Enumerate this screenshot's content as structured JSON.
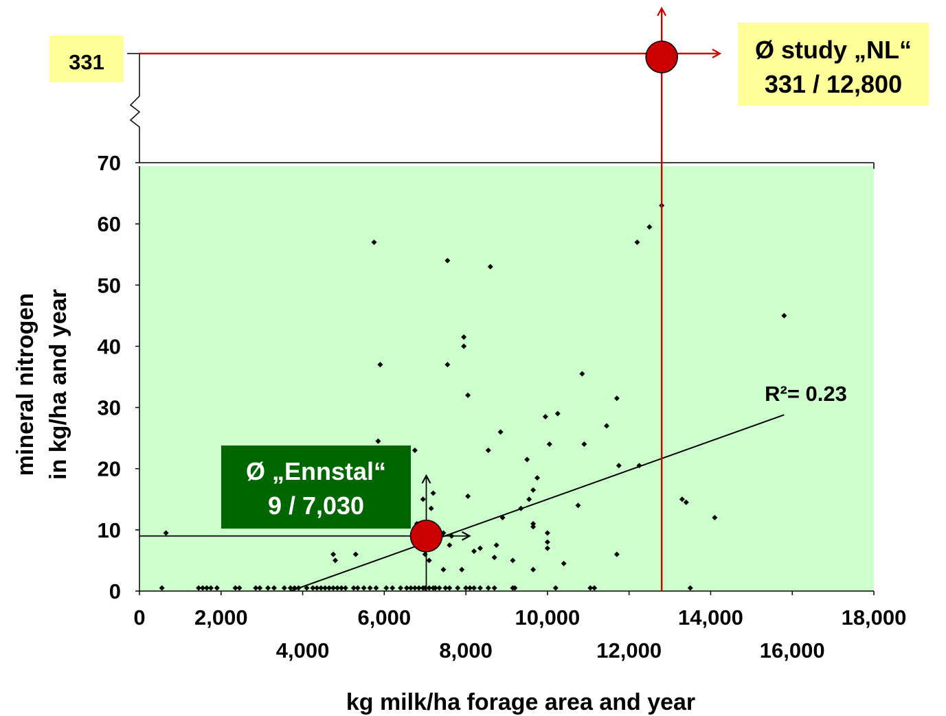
{
  "chart_data": {
    "type": "scatter",
    "xlabel": "kg milk/ha forage area and year",
    "ylabel_lines": [
      "mineral nitrogen",
      "in kg/ha and year"
    ],
    "xlim": [
      0,
      18000
    ],
    "ylim": [
      0,
      70
    ],
    "x_ticks": [
      0,
      2000,
      4000,
      6000,
      8000,
      10000,
      12000,
      14000,
      16000,
      18000
    ],
    "x_tick_labels": [
      "0",
      "2,000",
      "4,000",
      "6,000",
      "8,000",
      "10,000",
      "12,000",
      "14,000",
      "16,000",
      "18,000"
    ],
    "y_ticks": [
      0,
      10,
      20,
      30,
      40,
      50,
      60,
      70
    ],
    "y_tick_labels": [
      "0",
      "10",
      "20",
      "30",
      "40",
      "50",
      "60",
      "70"
    ],
    "plot_background": "#ccffcc",
    "grid": false,
    "points": [
      [
        550,
        0.5
      ],
      [
        1450,
        0.5
      ],
      [
        1550,
        0.5
      ],
      [
        1650,
        0.5
      ],
      [
        1750,
        0.5
      ],
      [
        1900,
        0.5
      ],
      [
        2350,
        0.5
      ],
      [
        2450,
        0.5
      ],
      [
        2850,
        0.5
      ],
      [
        2950,
        0.5
      ],
      [
        3150,
        0.5
      ],
      [
        3300,
        0.5
      ],
      [
        3550,
        0.5
      ],
      [
        3700,
        0.5
      ],
      [
        3800,
        0.5
      ],
      [
        3900,
        0.5
      ],
      [
        4100,
        0.5
      ],
      [
        4250,
        0.5
      ],
      [
        4350,
        0.5
      ],
      [
        4450,
        0.5
      ],
      [
        4550,
        0.5
      ],
      [
        4650,
        0.5
      ],
      [
        4750,
        0.5
      ],
      [
        4850,
        0.5
      ],
      [
        4950,
        0.5
      ],
      [
        5050,
        0.5
      ],
      [
        5250,
        0.5
      ],
      [
        5350,
        0.5
      ],
      [
        5500,
        0.5
      ],
      [
        5650,
        0.5
      ],
      [
        5800,
        0.5
      ],
      [
        6050,
        0.5
      ],
      [
        6200,
        0.5
      ],
      [
        6400,
        0.5
      ],
      [
        6550,
        0.5
      ],
      [
        6650,
        0.5
      ],
      [
        6750,
        0.5
      ],
      [
        6850,
        0.5
      ],
      [
        6950,
        0.5
      ],
      [
        7000,
        0.5
      ],
      [
        7100,
        0.5
      ],
      [
        7200,
        0.5
      ],
      [
        7250,
        0.5
      ],
      [
        7350,
        0.5
      ],
      [
        7500,
        0.5
      ],
      [
        7600,
        0.5
      ],
      [
        7800,
        0.5
      ],
      [
        8000,
        0.5
      ],
      [
        8100,
        0.5
      ],
      [
        8200,
        0.5
      ],
      [
        8350,
        0.5
      ],
      [
        8550,
        0.5
      ],
      [
        8700,
        0.5
      ],
      [
        9150,
        0.5
      ],
      [
        9200,
        0.5
      ],
      [
        10200,
        0.5
      ],
      [
        11050,
        0.5
      ],
      [
        11150,
        0.5
      ],
      [
        13500,
        0.5
      ],
      [
        650,
        9.5
      ],
      [
        4750,
        6
      ],
      [
        4800,
        5
      ],
      [
        5300,
        6
      ],
      [
        5750,
        57
      ],
      [
        5850,
        24.5
      ],
      [
        5900,
        37
      ],
      [
        6750,
        23
      ],
      [
        6800,
        11
      ],
      [
        6950,
        15
      ],
      [
        7000,
        6
      ],
      [
        7150,
        13.5
      ],
      [
        7200,
        16
      ],
      [
        7100,
        5
      ],
      [
        7250,
        8.5
      ],
      [
        7600,
        7.5
      ],
      [
        7450,
        9.5
      ],
      [
        7550,
        54
      ],
      [
        7550,
        37
      ],
      [
        7450,
        3.5
      ],
      [
        7650,
        9
      ],
      [
        7950,
        41.5
      ],
      [
        7950,
        40
      ],
      [
        7900,
        3.5
      ],
      [
        8050,
        32
      ],
      [
        8050,
        15.5
      ],
      [
        8200,
        6.5
      ],
      [
        8350,
        7
      ],
      [
        8550,
        23
      ],
      [
        8600,
        53
      ],
      [
        8750,
        7.5
      ],
      [
        8850,
        26
      ],
      [
        8900,
        12
      ],
      [
        8700,
        5.5
      ],
      [
        9150,
        5
      ],
      [
        9350,
        13.5
      ],
      [
        9500,
        21.5
      ],
      [
        9550,
        15
      ],
      [
        9650,
        16.5
      ],
      [
        9750,
        18.5
      ],
      [
        9650,
        11
      ],
      [
        9650,
        10.5
      ],
      [
        9650,
        3.5
      ],
      [
        9950,
        28.5
      ],
      [
        10000,
        9.5
      ],
      [
        10000,
        8
      ],
      [
        10000,
        7
      ],
      [
        10050,
        24
      ],
      [
        10250,
        29
      ],
      [
        10400,
        4.5
      ],
      [
        10750,
        14
      ],
      [
        10850,
        35.5
      ],
      [
        10900,
        24
      ],
      [
        11450,
        27
      ],
      [
        11700,
        31.5
      ],
      [
        11750,
        20.5
      ],
      [
        11700,
        6
      ],
      [
        12200,
        57
      ],
      [
        12250,
        20.5
      ],
      [
        12500,
        59.5
      ],
      [
        12800,
        63
      ],
      [
        13300,
        15
      ],
      [
        13400,
        14.5
      ],
      [
        14100,
        12
      ],
      [
        15800,
        45
      ]
    ],
    "trendline": {
      "x": [
        3700,
        15800
      ],
      "y": [
        0,
        28.8
      ],
      "label": "R²= 0.23"
    },
    "annotations": {
      "ennstal": {
        "line1": "Ø „Ennstal“",
        "line2": "9 / 7,030",
        "x": 7030,
        "y": 9,
        "box_color": "#006600",
        "text_color": "#ffffff"
      },
      "study_nl": {
        "line1": "Ø study „NL“",
        "line2": "331 / 12,800",
        "x": 12800,
        "y": 331,
        "box_color": "#ffff99",
        "text_color": "#000000"
      },
      "y_break_label": "331"
    },
    "marker_color": "#cc0000",
    "line_color_nl": "#cc0000"
  }
}
